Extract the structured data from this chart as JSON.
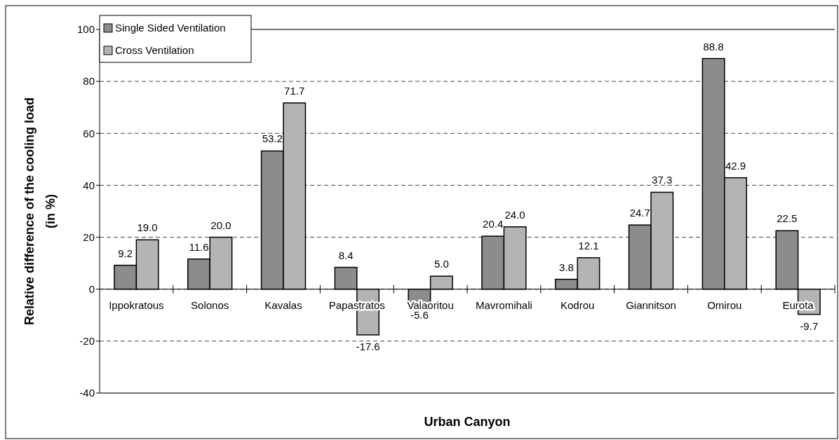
{
  "chart_data": {
    "type": "bar",
    "xlabel": "Urban Canyon",
    "ylabel": "Relative difference of the cooling load\n(in %)",
    "categories": [
      "Ippokratous",
      "Solonos",
      "Kavalas",
      "Papastratos",
      "Valaoritou",
      "Mavromihali",
      "Kodrou",
      "Giannitson",
      "Omirou",
      "Eurota"
    ],
    "series": [
      {
        "name": "Single Sided Ventilation",
        "color": "#8c8c8c",
        "values": [
          9.2,
          11.6,
          53.2,
          8.4,
          -5.6,
          20.4,
          3.8,
          24.7,
          88.8,
          22.5
        ],
        "value_labels": [
          "9.2",
          "11.6",
          "53.2",
          "8.4",
          "-5.6",
          "20.4",
          "3.8",
          "24.7",
          "88.8",
          "22.5"
        ]
      },
      {
        "name": "Cross Ventilation",
        "color": "#b4b4b4",
        "values": [
          19.0,
          20.0,
          71.7,
          -17.6,
          5.0,
          24.0,
          12.1,
          37.3,
          42.9,
          -9.7
        ],
        "value_labels": [
          "19.0",
          "20.0",
          "71.7",
          "-17.6",
          "5.0",
          "24.0",
          "12.1",
          "37.3",
          "42.9",
          "-9.7"
        ]
      }
    ],
    "ylim": [
      -40,
      100
    ],
    "yticks": [
      -40,
      -20,
      0,
      20,
      40,
      60,
      80,
      100
    ],
    "grid": "y",
    "legend": "top left"
  }
}
